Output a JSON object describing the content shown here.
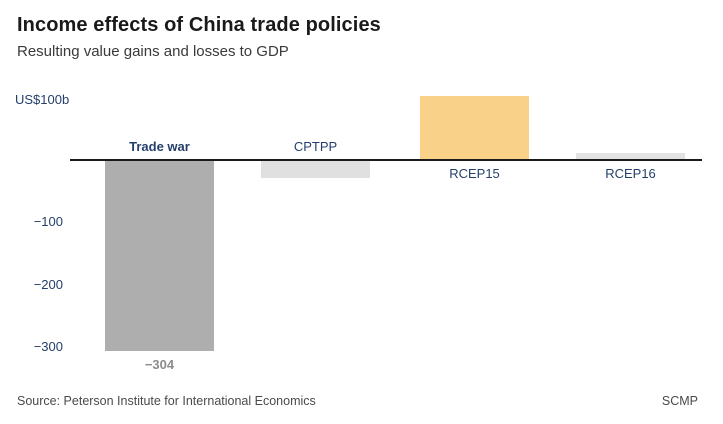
{
  "header": {
    "title": "Income effects of China trade policies",
    "subtitle": "Resulting value gains and losses to GDP"
  },
  "chart_data": {
    "type": "bar",
    "title": "Income effects of China trade policies",
    "subtitle": "Resulting value gains and losses to GDP",
    "unit_label": "US$100b",
    "unit": "US$ billions",
    "categories": [
      {
        "label": "Trade war",
        "emphasis": true
      },
      {
        "label": "CPTPP",
        "emphasis": false
      },
      {
        "label": "RCEP15",
        "emphasis": false
      },
      {
        "label": "RCEP16",
        "emphasis": false
      }
    ],
    "values": [
      -304,
      -28,
      100,
      9
    ],
    "value_labels": [
      "−304",
      "",
      "",
      ""
    ],
    "bar_colors": [
      "#aeaeae",
      "#e0e0e0",
      "#fad189",
      "#e2e2e2"
    ],
    "yticks": [
      {
        "value": -100,
        "label": "−100"
      },
      {
        "value": -200,
        "label": "−200"
      },
      {
        "value": -300,
        "label": "−300"
      }
    ],
    "ylim": [
      -320,
      110
    ],
    "grid": false,
    "legend": "none",
    "colors": {
      "accent_navy": "#243f6b",
      "axis_line": "#1a1a1a",
      "value_label_gray": "#8c8c8c",
      "background": "#ffffff"
    }
  },
  "footer": {
    "source": "Source: Peterson Institute for International Economics",
    "credit": "SCMP"
  }
}
